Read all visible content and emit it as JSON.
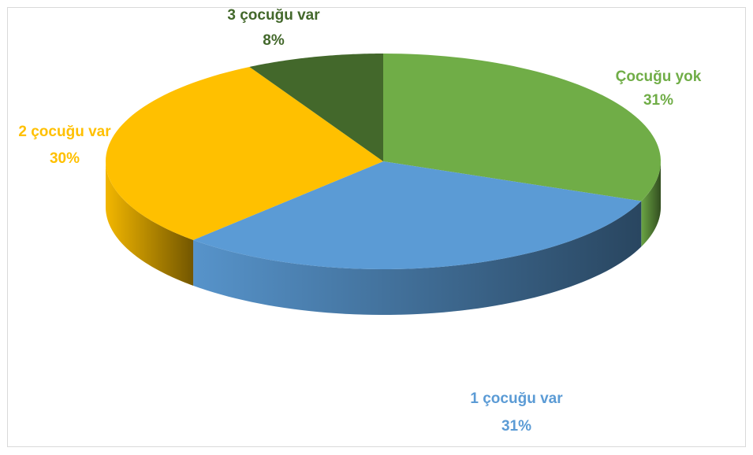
{
  "chart_data": {
    "type": "pie",
    "categories": [
      "Çocuğu yok",
      "1 çocuğu var",
      "2 çocuğu var",
      "3 çocuğu var"
    ],
    "values": [
      31,
      31,
      30,
      8
    ],
    "value_labels": [
      "31%",
      "31%",
      "30%",
      "8%"
    ],
    "colors": [
      "#70ad47",
      "#5b9bd5",
      "#ffc000",
      "#43682b"
    ]
  }
}
